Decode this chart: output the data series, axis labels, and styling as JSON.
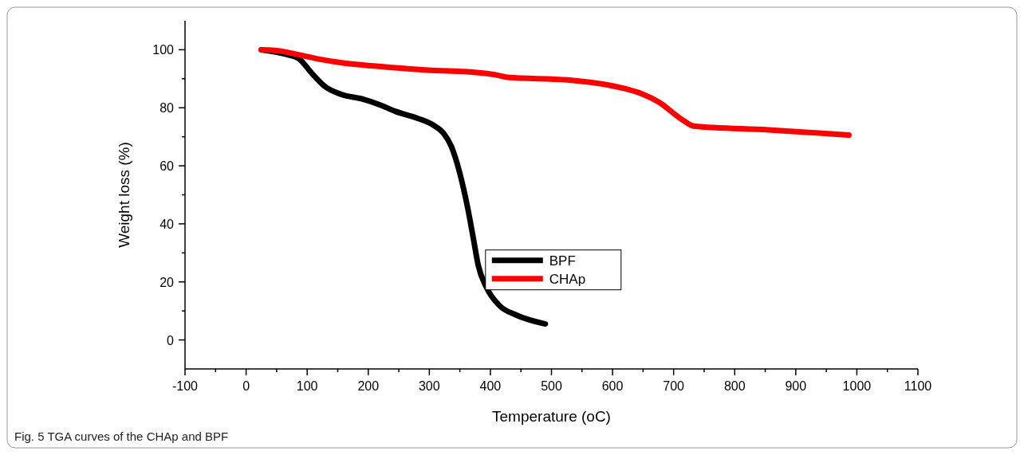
{
  "chart_data": {
    "type": "line",
    "xlabel": "Temperature (oC)",
    "ylabel": "Weight loss (%)",
    "xlim": [
      -100,
      1100
    ],
    "xticks": [
      -100,
      0,
      100,
      200,
      300,
      400,
      500,
      600,
      700,
      800,
      900,
      1000,
      1100
    ],
    "ylim": [
      -10,
      110
    ],
    "yticks": [
      0,
      20,
      40,
      60,
      80,
      100
    ],
    "grid": false,
    "legend": "right",
    "marker": "none",
    "line_style": "solid",
    "annotations": [
      "Fig. 5  TGA curves of the CHAp and BPF"
    ],
    "series": [
      {
        "name": "BPF",
        "color": "#000000",
        "x": [
          25,
          68,
          86,
          108,
          130,
          156,
          191,
          218,
          244,
          279,
          306,
          323,
          336,
          350,
          363,
          372,
          380,
          393,
          415,
          442,
          490
        ],
        "values": [
          100,
          98.3,
          97,
          91.8,
          87.2,
          84.6,
          83,
          81.1,
          78.8,
          76.5,
          74.1,
          71.3,
          66.7,
          57.4,
          45.3,
          35.1,
          25.8,
          18.3,
          11.8,
          8.6,
          5.5
        ]
      },
      {
        "name": "CHAp",
        "color": "#ff0000",
        "x": [
          25,
          55,
          86,
          121,
          156,
          209,
          297,
          384,
          410,
          428,
          526,
          620,
          648,
          676,
          714,
          733,
          855,
          987
        ],
        "values": [
          100,
          99.6,
          98.3,
          96.7,
          95.5,
          94.4,
          93,
          92,
          91.3,
          90.5,
          89.6,
          86.6,
          84.8,
          81.9,
          75.9,
          73.7,
          72.4,
          70.6
        ]
      }
    ]
  }
}
